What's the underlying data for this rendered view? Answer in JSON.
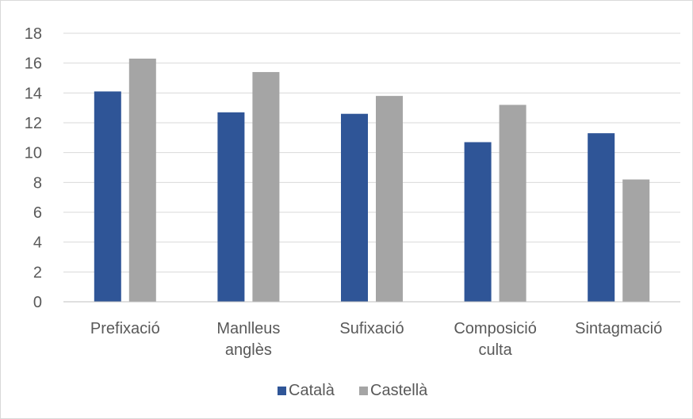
{
  "chart_data": {
    "type": "bar",
    "categories": [
      [
        "Prefixació"
      ],
      [
        "Manlleus",
        "anglès"
      ],
      [
        "Sufixació"
      ],
      [
        "Composició",
        "culta"
      ],
      [
        "Sintagmació"
      ]
    ],
    "series": [
      {
        "name": "Català",
        "color": "#2F5597",
        "values": [
          14.1,
          12.7,
          12.6,
          10.7,
          11.3
        ]
      },
      {
        "name": "Castellà",
        "color": "#A5A5A5",
        "values": [
          16.3,
          15.4,
          13.8,
          13.2,
          8.2
        ]
      }
    ],
    "title": "",
    "xlabel": "",
    "ylabel": "",
    "ylim": [
      0,
      18
    ],
    "yticks": [
      0,
      2,
      4,
      6,
      8,
      10,
      12,
      14,
      16,
      18
    ],
    "grid": true,
    "legend_position": "bottom",
    "gridline_color": "#D9D9D9",
    "axis_color": "#BFBFBF"
  }
}
